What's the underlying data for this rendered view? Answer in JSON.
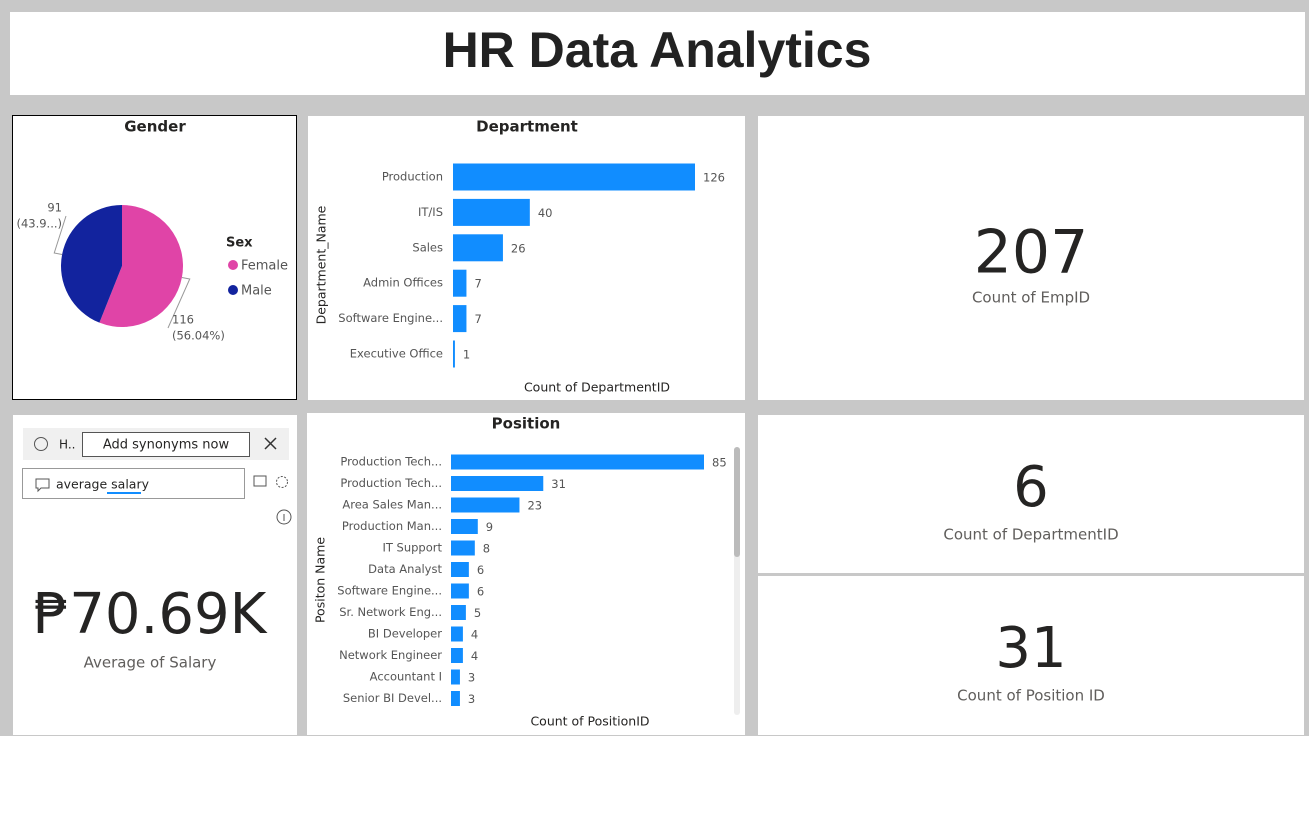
{
  "header": {
    "title": "HR Data Analytics"
  },
  "chart_data": [
    {
      "type": "pie",
      "title": "Gender",
      "legend_title": "Sex",
      "legend": "right",
      "categories": [
        "Female",
        "Male"
      ],
      "values": [
        116,
        91
      ],
      "percent_labels": [
        "(56.04%)",
        "(43.9...)"
      ],
      "colors": [
        "#e044a7",
        "#12239e"
      ]
    },
    {
      "type": "bar",
      "orientation": "horizontal",
      "title": "Department",
      "ylabel": "Department_Name",
      "xlabel": "Count of DepartmentID",
      "categories": [
        "Production",
        "IT/IS",
        "Sales",
        "Admin Offices",
        "Software Engine...",
        "Executive Office"
      ],
      "values": [
        126,
        40,
        26,
        7,
        7,
        1
      ],
      "xlim": [
        0,
        126
      ],
      "color": "#118dff"
    },
    {
      "type": "bar",
      "orientation": "horizontal",
      "title": "Position",
      "ylabel": "Positon Name",
      "xlabel": "Count of PositionID",
      "categories": [
        "Production Tech...",
        "Production Tech...",
        "Area Sales Man...",
        "Production Man...",
        "IT Support",
        "Data Analyst",
        "Software Engine...",
        "Sr. Network Eng...",
        "BI Developer",
        "Network Engineer",
        "Accountant I",
        "Senior BI Devel..."
      ],
      "values": [
        85,
        31,
        23,
        9,
        8,
        6,
        6,
        5,
        4,
        4,
        3,
        3
      ],
      "xlim": [
        0,
        85
      ],
      "color": "#118dff"
    }
  ],
  "cards": [
    {
      "value": 207,
      "label": "Count of EmpID"
    },
    {
      "value": 6,
      "label": "Count of DepartmentID"
    },
    {
      "value": 31,
      "label": "Count of Position ID"
    },
    {
      "value": "₱70.69K",
      "label": "Average of Salary"
    }
  ],
  "qa": {
    "info": "H..",
    "button": "Add synonyms now",
    "query": "average salary"
  }
}
